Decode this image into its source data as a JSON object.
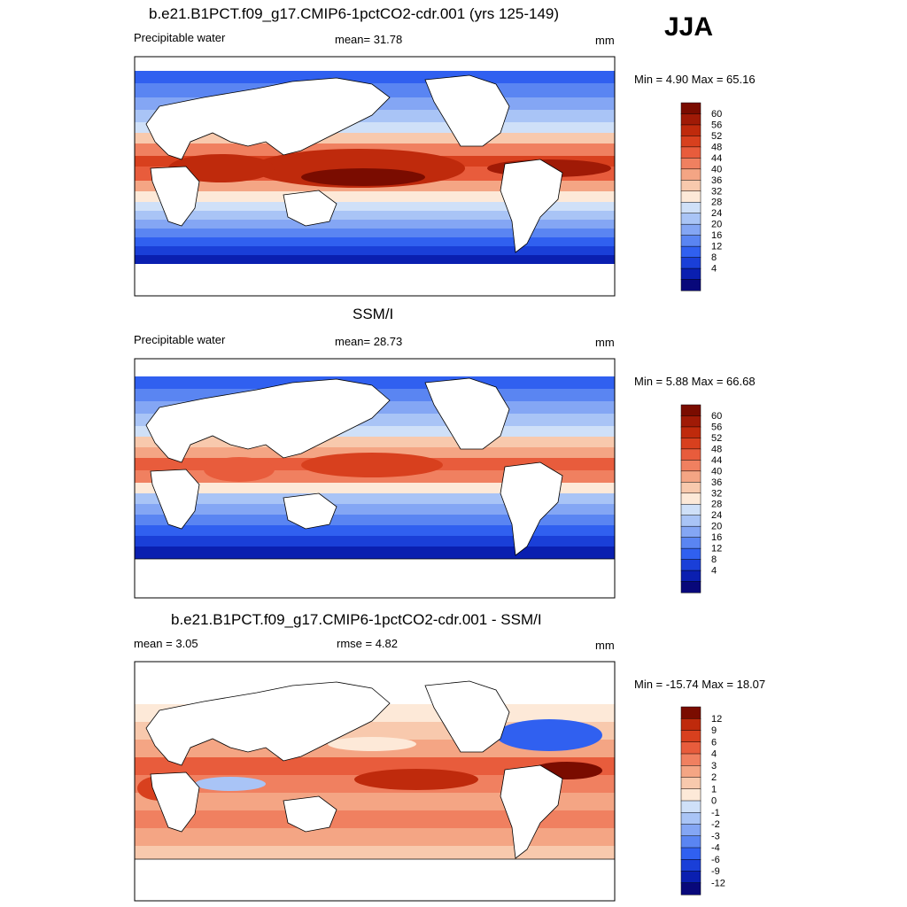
{
  "season": "JJA",
  "colors": {
    "abs_scale": [
      "#08087a",
      "#0a1fb0",
      "#1a3fd8",
      "#3060f0",
      "#5a85f2",
      "#84a6f4",
      "#a9c4f6",
      "#cfe0f8",
      "#fde9d8",
      "#f8c9ad",
      "#f4a584",
      "#f08060",
      "#e85c3c",
      "#d8401e",
      "#bf2a0c",
      "#a01a06",
      "#7a0c00"
    ],
    "diff_scale": [
      "#08087a",
      "#0a1fb0",
      "#1a3fd8",
      "#3060f0",
      "#5a85f2",
      "#84a6f4",
      "#a9c4f6",
      "#cfe0f8",
      "#fde9d8",
      "#f8c9ad",
      "#f4a584",
      "#f08060",
      "#e85c3c",
      "#d8401e",
      "#bf2a0c",
      "#7a0c00"
    ],
    "land": "#ffffff",
    "coast": "#000000"
  },
  "panels": [
    {
      "id": "model",
      "title": "b.e21.B1PCT.f09_g17.CMIP6-1pctCO2-cdr.001 (yrs 125-149)",
      "left_label": "Precipitable water",
      "center_label": "mean=  31.78",
      "units": "mm",
      "minmax": "Min =   4.90 Max =  65.16"
    },
    {
      "id": "obs",
      "title": "SSM/I",
      "left_label": "Precipitable water",
      "center_label": "mean=  28.73",
      "units": "mm",
      "minmax": "Min =   5.88 Max =  66.68"
    },
    {
      "id": "diff",
      "title": "b.e21.B1PCT.f09_g17.CMIP6-1pctCO2-cdr.001 - SSM/I",
      "left_label": "mean =   3.05",
      "center_label": "rmse =   4.82",
      "units": "mm",
      "minmax": "Min = -15.74 Max =  18.07"
    }
  ],
  "chart_data": [
    {
      "type": "heatmap",
      "title": "b.e21.B1PCT.f09_g17.CMIP6-1pctCO2-cdr.001 (yrs 125-149)",
      "variable": "Precipitable water",
      "units": "mm",
      "mean": 31.78,
      "min": 4.9,
      "max": 65.16,
      "colorbar_levels": [
        60,
        56,
        52,
        48,
        44,
        40,
        36,
        32,
        28,
        24,
        20,
        16,
        12,
        8,
        4
      ]
    },
    {
      "type": "heatmap",
      "title": "SSM/I",
      "variable": "Precipitable water",
      "units": "mm",
      "mean": 28.73,
      "min": 5.88,
      "max": 66.68,
      "colorbar_levels": [
        60,
        56,
        52,
        48,
        44,
        40,
        36,
        32,
        28,
        24,
        20,
        16,
        12,
        8,
        4
      ]
    },
    {
      "type": "heatmap",
      "title": "b.e21.B1PCT.f09_g17.CMIP6-1pctCO2-cdr.001 - SSM/I",
      "units": "mm",
      "mean": 3.05,
      "rmse": 4.82,
      "min": -15.74,
      "max": 18.07,
      "colorbar_levels": [
        12,
        9,
        6,
        4,
        3,
        2,
        1,
        0,
        -1,
        -2,
        -3,
        -4,
        -6,
        -9,
        -12
      ]
    }
  ]
}
